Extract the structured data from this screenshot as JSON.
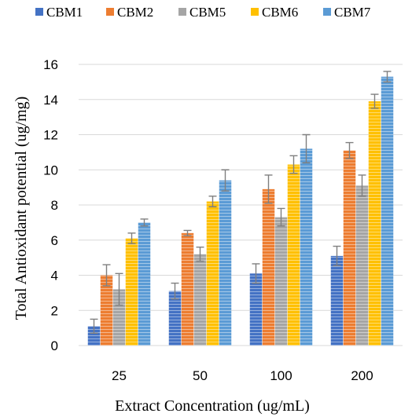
{
  "chart_data": {
    "type": "bar",
    "title": "",
    "xlabel": "Extract Concentration (ug/mL)",
    "ylabel": "Total Antioxidant potential (ug/mg)",
    "categories": [
      "25",
      "50",
      "100",
      "200"
    ],
    "ylim": [
      0,
      16
    ],
    "yticks": [
      0,
      2,
      4,
      6,
      8,
      10,
      12,
      14,
      16
    ],
    "grid": true,
    "legend_position": "top",
    "series": [
      {
        "name": "CBM1",
        "color": "#4472c4",
        "values": [
          1.1,
          3.1,
          4.1,
          5.1
        ],
        "errors": [
          0.4,
          0.45,
          0.55,
          0.55
        ]
      },
      {
        "name": "CBM2",
        "color": "#ed7d31",
        "values": [
          4.0,
          6.4,
          8.9,
          11.1
        ],
        "errors": [
          0.6,
          0.15,
          0.8,
          0.45
        ]
      },
      {
        "name": "CBM5",
        "color": "#a5a5a5",
        "values": [
          3.2,
          5.2,
          7.3,
          9.1
        ],
        "errors": [
          0.9,
          0.4,
          0.5,
          0.6
        ]
      },
      {
        "name": "CBM6",
        "color": "#ffc000",
        "values": [
          6.1,
          8.2,
          10.3,
          13.9
        ],
        "errors": [
          0.3,
          0.3,
          0.5,
          0.4
        ]
      },
      {
        "name": "CBM7",
        "color": "#5b9bd5",
        "values": [
          7.0,
          9.4,
          11.2,
          15.3
        ],
        "errors": [
          0.2,
          0.6,
          0.8,
          0.3
        ]
      }
    ]
  }
}
